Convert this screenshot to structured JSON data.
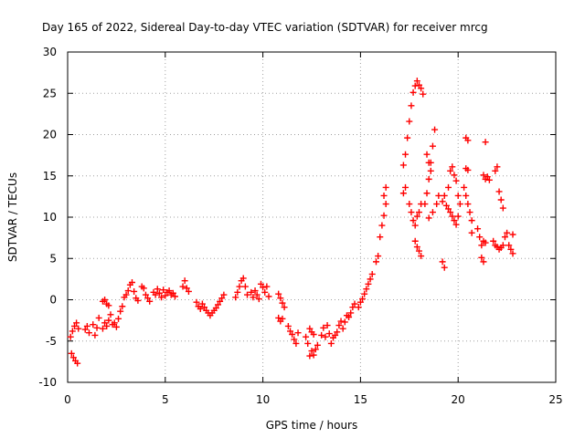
{
  "chart_data": {
    "type": "scatter",
    "title": "Day 165 of 2022, Sidereal Day-to-day VTEC variation (SDTVAR) for receiver mrcg",
    "xlabel": "GPS time / hours",
    "ylabel": "SDTVAR / TECUs",
    "xlim": [
      0,
      25
    ],
    "ylim": [
      -10,
      30
    ],
    "xticks": [
      "0",
      "5",
      "10",
      "15",
      "20",
      "25"
    ],
    "yticks": [
      "-10",
      "-5",
      "0",
      "5",
      "10",
      "15",
      "20",
      "25",
      "30"
    ],
    "grid": true,
    "marker": "plus",
    "series": [
      {
        "name": "SDTVAR",
        "color": "#ff0000",
        "points": [
          [
            0.2,
            -6.5
          ],
          [
            0.3,
            -7.0
          ],
          [
            0.4,
            -7.4
          ],
          [
            0.5,
            -7.7
          ],
          [
            0.15,
            -4.5
          ],
          [
            0.25,
            -3.8
          ],
          [
            0.35,
            -3.2
          ],
          [
            0.45,
            -2.8
          ],
          [
            0.55,
            -3.5
          ],
          [
            0.9,
            -3.6
          ],
          [
            1.0,
            -3.2
          ],
          [
            1.1,
            -4.0
          ],
          [
            1.3,
            -3.0
          ],
          [
            1.4,
            -4.3
          ],
          [
            1.5,
            -3.4
          ],
          [
            1.6,
            -2.2
          ],
          [
            1.8,
            -3.5
          ],
          [
            1.9,
            -2.8
          ],
          [
            2.0,
            -3.2
          ],
          [
            2.1,
            -2.5
          ],
          [
            2.2,
            -1.8
          ],
          [
            1.8,
            -0.2
          ],
          [
            1.9,
            0.0
          ],
          [
            2.0,
            -0.5
          ],
          [
            2.1,
            -0.7
          ],
          [
            2.3,
            -3.0
          ],
          [
            2.4,
            -2.8
          ],
          [
            2.5,
            -3.3
          ],
          [
            2.6,
            -2.3
          ],
          [
            2.7,
            -1.4
          ],
          [
            2.8,
            -0.8
          ],
          [
            2.9,
            0.3
          ],
          [
            3.0,
            0.6
          ],
          [
            3.1,
            1.1
          ],
          [
            3.2,
            1.8
          ],
          [
            3.3,
            2.1
          ],
          [
            3.4,
            1.0
          ],
          [
            3.5,
            0.2
          ],
          [
            3.6,
            -0.1
          ],
          [
            3.8,
            1.6
          ],
          [
            3.9,
            1.4
          ],
          [
            4.0,
            0.6
          ],
          [
            4.1,
            0.2
          ],
          [
            4.2,
            -0.2
          ],
          [
            4.4,
            0.9
          ],
          [
            4.5,
            0.6
          ],
          [
            4.6,
            1.3
          ],
          [
            4.7,
            0.8
          ],
          [
            4.8,
            0.3
          ],
          [
            4.9,
            1.2
          ],
          [
            5.0,
            0.5
          ],
          [
            5.1,
            0.9
          ],
          [
            5.2,
            1.1
          ],
          [
            5.3,
            0.6
          ],
          [
            5.4,
            0.8
          ],
          [
            5.5,
            0.4
          ],
          [
            5.9,
            1.6
          ],
          [
            6.0,
            2.3
          ],
          [
            6.1,
            1.4
          ],
          [
            6.2,
            1.0
          ],
          [
            6.6,
            -0.3
          ],
          [
            6.7,
            -0.8
          ],
          [
            6.8,
            -1.1
          ],
          [
            6.9,
            -0.5
          ],
          [
            7.0,
            -0.9
          ],
          [
            7.1,
            -1.3
          ],
          [
            7.2,
            -1.6
          ],
          [
            7.3,
            -1.9
          ],
          [
            7.4,
            -1.6
          ],
          [
            7.5,
            -1.3
          ],
          [
            7.6,
            -1.0
          ],
          [
            7.7,
            -0.6
          ],
          [
            7.8,
            -0.2
          ],
          [
            7.9,
            0.2
          ],
          [
            8.0,
            0.6
          ],
          [
            8.6,
            0.3
          ],
          [
            8.7,
            0.9
          ],
          [
            8.8,
            1.6
          ],
          [
            8.9,
            2.3
          ],
          [
            9.0,
            2.6
          ],
          [
            9.1,
            1.6
          ],
          [
            9.2,
            0.6
          ],
          [
            9.4,
            0.9
          ],
          [
            9.5,
            0.3
          ],
          [
            9.6,
            1.1
          ],
          [
            9.7,
            0.6
          ],
          [
            9.8,
            0.1
          ],
          [
            9.9,
            1.9
          ],
          [
            10.0,
            1.5
          ],
          [
            10.1,
            0.9
          ],
          [
            10.2,
            1.6
          ],
          [
            10.3,
            0.4
          ],
          [
            10.8,
            0.7
          ],
          [
            10.9,
            0.2
          ],
          [
            11.0,
            -0.4
          ],
          [
            11.1,
            -0.9
          ],
          [
            10.8,
            -2.2
          ],
          [
            10.9,
            -2.6
          ],
          [
            11.0,
            -2.3
          ],
          [
            11.3,
            -3.2
          ],
          [
            11.4,
            -3.8
          ],
          [
            11.5,
            -4.2
          ],
          [
            11.6,
            -4.8
          ],
          [
            11.7,
            -5.3
          ],
          [
            11.8,
            -4.0
          ],
          [
            12.2,
            -4.5
          ],
          [
            12.3,
            -5.3
          ],
          [
            12.4,
            -6.8
          ],
          [
            12.5,
            -6.2
          ],
          [
            12.6,
            -6.7
          ],
          [
            12.7,
            -6.0
          ],
          [
            12.8,
            -5.5
          ],
          [
            12.4,
            -3.5
          ],
          [
            12.5,
            -3.9
          ],
          [
            12.6,
            -4.2
          ],
          [
            13.0,
            -4.3
          ],
          [
            13.1,
            -3.4
          ],
          [
            13.2,
            -4.5
          ],
          [
            13.3,
            -3.1
          ],
          [
            13.4,
            -4.1
          ],
          [
            13.5,
            -5.3
          ],
          [
            13.6,
            -4.6
          ],
          [
            13.7,
            -4.3
          ],
          [
            13.8,
            -3.9
          ],
          [
            13.9,
            -3.1
          ],
          [
            14.0,
            -2.6
          ],
          [
            14.1,
            -3.5
          ],
          [
            14.2,
            -2.7
          ],
          [
            14.3,
            -1.9
          ],
          [
            14.4,
            -2.1
          ],
          [
            14.5,
            -1.6
          ],
          [
            14.6,
            -0.9
          ],
          [
            14.7,
            -0.5
          ],
          [
            14.9,
            -0.9
          ],
          [
            15.0,
            -0.3
          ],
          [
            15.1,
            0.1
          ],
          [
            15.2,
            0.7
          ],
          [
            15.3,
            1.3
          ],
          [
            15.4,
            1.9
          ],
          [
            15.5,
            2.5
          ],
          [
            15.6,
            3.1
          ],
          [
            15.8,
            4.6
          ],
          [
            15.9,
            5.3
          ],
          [
            16.0,
            7.6
          ],
          [
            16.1,
            9.0
          ],
          [
            16.2,
            10.2
          ],
          [
            16.3,
            11.6
          ],
          [
            16.2,
            12.6
          ],
          [
            16.3,
            13.6
          ],
          [
            17.2,
            16.3
          ],
          [
            17.3,
            17.6
          ],
          [
            17.4,
            19.6
          ],
          [
            17.5,
            21.6
          ],
          [
            17.6,
            23.5
          ],
          [
            17.7,
            25.1
          ],
          [
            17.8,
            25.9
          ],
          [
            17.9,
            26.5
          ],
          [
            18.0,
            26.0
          ],
          [
            18.1,
            25.6
          ],
          [
            18.2,
            24.9
          ],
          [
            17.2,
            12.9
          ],
          [
            17.3,
            13.6
          ],
          [
            17.5,
            11.6
          ],
          [
            17.6,
            10.6
          ],
          [
            17.7,
            9.6
          ],
          [
            17.8,
            9.0
          ],
          [
            17.9,
            10.1
          ],
          [
            18.0,
            10.6
          ],
          [
            18.1,
            11.6
          ],
          [
            17.8,
            7.1
          ],
          [
            17.9,
            6.4
          ],
          [
            18.0,
            5.9
          ],
          [
            18.1,
            5.3
          ],
          [
            18.3,
            11.6
          ],
          [
            18.4,
            12.9
          ],
          [
            18.5,
            14.6
          ],
          [
            18.6,
            16.6
          ],
          [
            18.7,
            18.6
          ],
          [
            18.8,
            20.6
          ],
          [
            18.5,
            9.9
          ],
          [
            18.7,
            10.6
          ],
          [
            18.9,
            11.6
          ],
          [
            19.0,
            12.6
          ],
          [
            18.4,
            17.6
          ],
          [
            18.5,
            16.6
          ],
          [
            18.6,
            15.6
          ],
          [
            19.2,
            11.9
          ],
          [
            19.3,
            12.6
          ],
          [
            19.4,
            11.4
          ],
          [
            19.5,
            13.6
          ],
          [
            19.6,
            15.6
          ],
          [
            19.7,
            16.1
          ],
          [
            19.8,
            15.1
          ],
          [
            19.9,
            14.4
          ],
          [
            20.0,
            12.6
          ],
          [
            20.1,
            11.6
          ],
          [
            19.5,
            11.0
          ],
          [
            19.6,
            10.6
          ],
          [
            19.7,
            10.1
          ],
          [
            19.8,
            9.6
          ],
          [
            19.9,
            9.1
          ],
          [
            20.0,
            10.1
          ],
          [
            19.2,
            4.6
          ],
          [
            19.3,
            3.9
          ],
          [
            20.3,
            13.6
          ],
          [
            20.4,
            12.6
          ],
          [
            20.5,
            11.6
          ],
          [
            20.6,
            10.6
          ],
          [
            20.7,
            9.6
          ],
          [
            20.7,
            8.1
          ],
          [
            20.4,
            15.9
          ],
          [
            20.5,
            15.7
          ],
          [
            20.4,
            19.6
          ],
          [
            20.5,
            19.3
          ],
          [
            21.0,
            8.6
          ],
          [
            21.1,
            7.6
          ],
          [
            21.2,
            6.6
          ],
          [
            21.3,
            7.1
          ],
          [
            21.4,
            6.9
          ],
          [
            21.4,
            19.1
          ],
          [
            21.3,
            15.1
          ],
          [
            21.4,
            14.6
          ],
          [
            21.5,
            14.9
          ],
          [
            21.6,
            14.5
          ],
          [
            21.2,
            5.1
          ],
          [
            21.3,
            4.6
          ],
          [
            21.9,
            15.6
          ],
          [
            22.0,
            16.1
          ],
          [
            22.1,
            13.1
          ],
          [
            22.2,
            12.1
          ],
          [
            22.3,
            11.1
          ],
          [
            21.8,
            7.1
          ],
          [
            21.9,
            6.6
          ],
          [
            22.0,
            6.4
          ],
          [
            22.1,
            6.1
          ],
          [
            22.2,
            6.3
          ],
          [
            22.3,
            6.6
          ],
          [
            22.4,
            7.6
          ],
          [
            22.5,
            8.1
          ],
          [
            22.6,
            6.6
          ],
          [
            22.7,
            6.1
          ],
          [
            22.8,
            5.6
          ],
          [
            22.8,
            7.9
          ]
        ]
      }
    ]
  }
}
